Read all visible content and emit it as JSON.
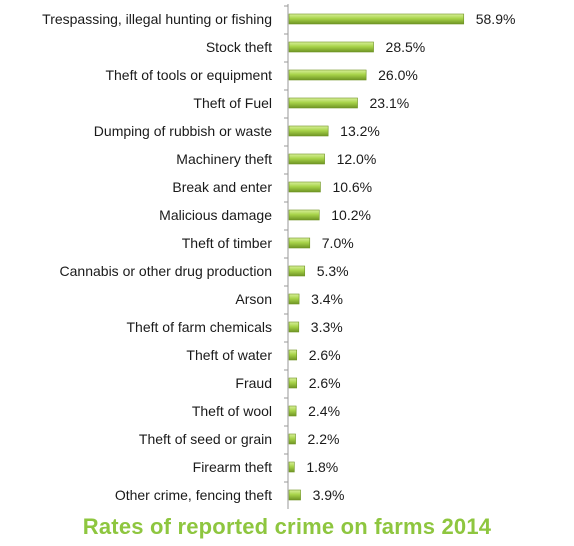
{
  "chart_data": {
    "type": "bar",
    "orientation": "horizontal",
    "title": "Rates of reported crime on farms 2014",
    "categories": [
      "Trespassing, illegal hunting or fishing",
      "Stock theft",
      "Theft of tools or equipment",
      "Theft of Fuel",
      "Dumping of rubbish or waste",
      "Machinery theft",
      "Break and enter",
      "Malicious damage",
      "Theft of timber",
      "Cannabis or other drug production",
      "Arson",
      "Theft of farm chemicals",
      "Theft of water",
      "Fraud",
      "Theft of wool",
      "Theft of seed or grain",
      "Firearm theft",
      "Other crime, fencing theft"
    ],
    "values": [
      58.9,
      28.5,
      26.0,
      23.1,
      13.2,
      12.0,
      10.6,
      10.2,
      7.0,
      5.3,
      3.4,
      3.3,
      2.6,
      2.6,
      2.4,
      2.2,
      1.8,
      3.9
    ],
    "value_labels": [
      "58.9%",
      "28.5%",
      "26.0%",
      "23.1%",
      "13.2%",
      "12.0%",
      "10.6%",
      "10.2%",
      "7.0%",
      "5.3%",
      "3.4%",
      "3.3%",
      "2.6%",
      "2.6%",
      "2.4%",
      "2.2%",
      "1.8%",
      "3.9%"
    ],
    "value_unit": "%",
    "xlim": [
      0,
      60
    ],
    "grid": false,
    "legend": "none",
    "colors": {
      "bar_light": "#d8ef9a",
      "bar_mid": "#a8d44a",
      "bar_dark": "#6f9424",
      "title": "#8ec63f",
      "axis": "#9a9a9a"
    }
  }
}
